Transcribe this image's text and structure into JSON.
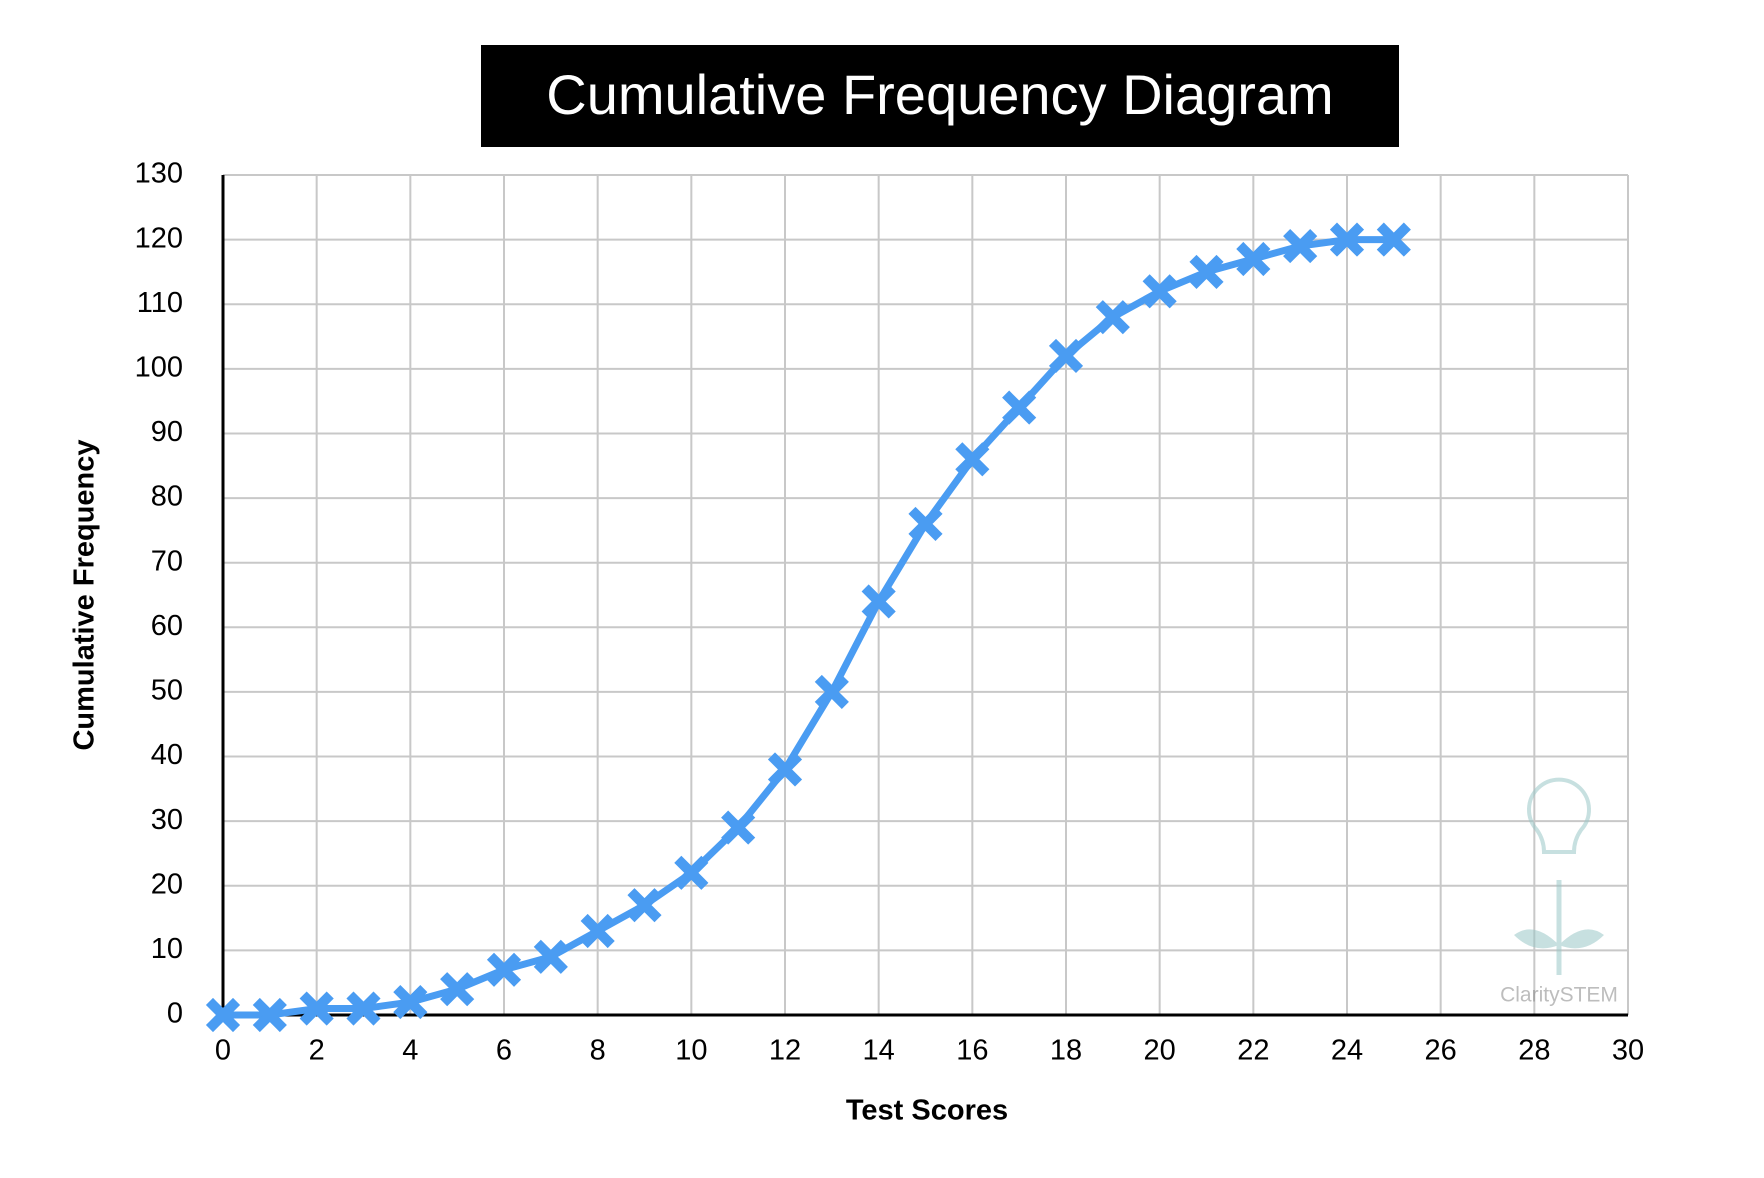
{
  "chart_data": {
    "type": "line",
    "title": "Cumulative Frequency Diagram",
    "x_label": "Test Scores",
    "y_label": "Cumulative Frequency",
    "x": [
      0,
      1,
      2,
      3,
      4,
      5,
      6,
      7,
      8,
      9,
      10,
      11,
      12,
      13,
      14,
      15,
      16,
      17,
      18,
      19,
      20,
      21,
      22,
      23,
      24,
      25
    ],
    "series": [
      {
        "name": "Cumulative Frequency",
        "color": "#4a9cf2",
        "values": [
          0,
          0,
          1,
          1,
          2,
          4,
          7,
          9,
          13,
          17,
          22,
          29,
          38,
          50,
          64,
          76,
          86,
          94,
          102,
          108,
          112,
          115,
          117,
          119,
          120,
          120
        ]
      }
    ],
    "xlim": [
      0,
      30
    ],
    "xticks": [
      0,
      2,
      4,
      6,
      8,
      10,
      12,
      14,
      16,
      18,
      20,
      22,
      24,
      26,
      28,
      30
    ],
    "ylim": [
      0,
      130
    ],
    "yticks": [
      0,
      10,
      20,
      30,
      40,
      50,
      60,
      70,
      80,
      90,
      100,
      110,
      120,
      130
    ],
    "grid": true,
    "marker": "x",
    "watermark": "ClaritySTEM"
  }
}
